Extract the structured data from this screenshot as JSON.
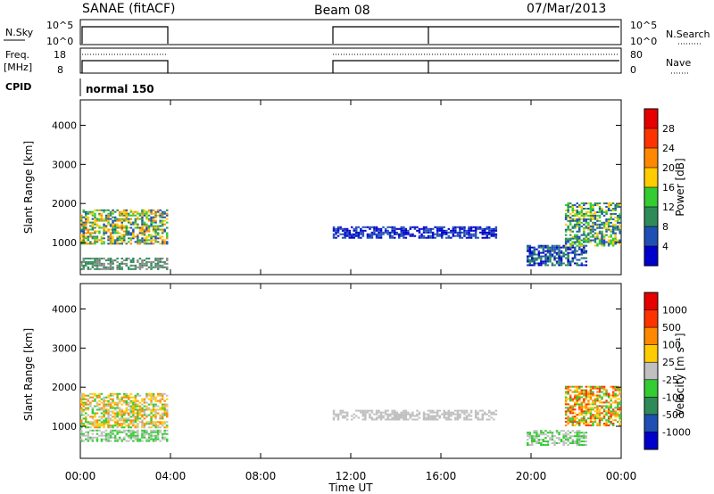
{
  "header": {
    "station": "SANAE (fitACF)",
    "beam": "Beam 08",
    "date": "07/Mar/2013"
  },
  "panels": {
    "nsky": {
      "left_label": "N.Sky",
      "left_ticks": [
        "10^5",
        "10^0"
      ],
      "right_ticks": [
        "10^5",
        "10^0"
      ],
      "right_label": "N.Search"
    },
    "freq": {
      "left_label_1": "Freq.",
      "left_label_2": "[MHz]",
      "left_ticks": [
        "18",
        "8"
      ],
      "right_ticks": [
        "80",
        "0"
      ],
      "right_label": "Nave"
    },
    "cpid": {
      "label": "CPID",
      "program": "normal 150"
    }
  },
  "chart_data": [
    {
      "type": "heatmap",
      "name": "power",
      "ylabel": "Slant Range [km]",
      "xlabel": "",
      "x_ticks": [
        "00:00",
        "04:00",
        "08:00",
        "12:00",
        "16:00",
        "20:00",
        "00:00"
      ],
      "xlim_hours": [
        0,
        24
      ],
      "y_ticks": [
        1000,
        2000,
        3000,
        4000
      ],
      "ylim": [
        180,
        4650
      ],
      "colorbar": {
        "label": "Power [dB]",
        "ticks": [
          "4",
          "8",
          "12",
          "16",
          "20",
          "24",
          "28"
        ],
        "colors": [
          "#0000cc",
          "#1f4fb4",
          "#2e8b57",
          "#33cc33",
          "#ffcc00",
          "#ff8800",
          "#ff3300",
          "#e60000"
        ]
      },
      "regions": [
        {
          "x": [
            0.0,
            3.9
          ],
          "y": [
            950,
            1850
          ],
          "colors": [
            "#1f4fb4",
            "#2e8b57",
            "#33cc33",
            "#ffcc00",
            "#ff8800"
          ]
        },
        {
          "x": [
            0.0,
            3.9
          ],
          "y": [
            300,
            600
          ],
          "colors": [
            "#2e8b57",
            "#888888"
          ]
        },
        {
          "x": [
            11.2,
            18.5
          ],
          "y": [
            1100,
            1400
          ],
          "colors": [
            "#1f4fb4",
            "#0000cc"
          ]
        },
        {
          "x": [
            19.8,
            22.5
          ],
          "y": [
            400,
            900
          ],
          "colors": [
            "#1f4fb4",
            "#2e8b57",
            "#0000cc"
          ]
        },
        {
          "x": [
            21.5,
            24.0
          ],
          "y": [
            900,
            2000
          ],
          "colors": [
            "#1f4fb4",
            "#2e8b57",
            "#33cc33",
            "#ffcc00"
          ]
        }
      ]
    },
    {
      "type": "heatmap",
      "name": "velocity",
      "ylabel": "Slant Range [km]",
      "xlabel": "Time UT",
      "x_ticks": [
        "00:00",
        "04:00",
        "08:00",
        "12:00",
        "16:00",
        "20:00",
        "00:00"
      ],
      "xlim_hours": [
        0,
        24
      ],
      "y_ticks": [
        1000,
        2000,
        3000,
        4000
      ],
      "ylim": [
        180,
        4650
      ],
      "colorbar": {
        "label": "Velocity [m s⁻¹]",
        "ticks": [
          "1000",
          "500",
          "100",
          "25",
          "-25",
          "-100",
          "-500",
          "-1000"
        ],
        "colors": [
          "#0000cc",
          "#1f4fb4",
          "#2e8b57",
          "#33cc33",
          "#c0c0c0",
          "#ffcc00",
          "#ff8800",
          "#ff3300",
          "#e60000"
        ]
      },
      "regions": [
        {
          "x": [
            0.0,
            3.9
          ],
          "y": [
            950,
            1850
          ],
          "colors": [
            "#ffcc00",
            "#ff8800",
            "#33cc33",
            "#c0c0c0"
          ]
        },
        {
          "x": [
            0.0,
            3.9
          ],
          "y": [
            600,
            900
          ],
          "colors": [
            "#c0c0c0",
            "#33cc33"
          ]
        },
        {
          "x": [
            11.2,
            18.5
          ],
          "y": [
            1150,
            1400
          ],
          "colors": [
            "#c0c0c0"
          ]
        },
        {
          "x": [
            19.8,
            22.5
          ],
          "y": [
            500,
            900
          ],
          "colors": [
            "#c0c0c0",
            "#33cc33"
          ]
        },
        {
          "x": [
            21.5,
            24.0
          ],
          "y": [
            1000,
            2000
          ],
          "colors": [
            "#ff8800",
            "#ff3300",
            "#ffcc00",
            "#33cc33"
          ]
        }
      ]
    }
  ]
}
